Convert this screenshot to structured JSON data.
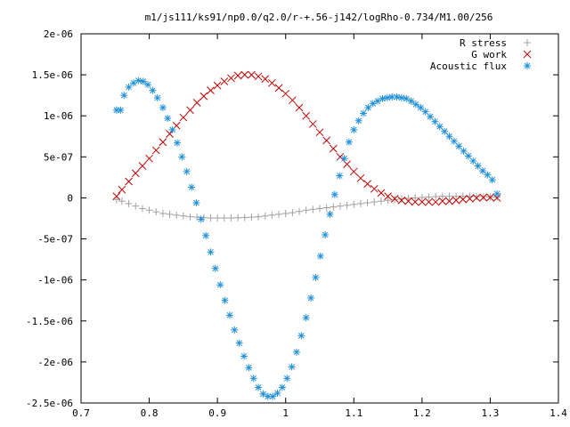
{
  "chart_data": {
    "type": "scatter",
    "title": "m1/js111/ks91/np0.0/q2.0/r-+.56-j142/logRho-0.734/M1.00/256",
    "xlabel": "",
    "ylabel": "",
    "xlim": [
      0.7,
      1.4
    ],
    "ylim": [
      -2.5e-06,
      2e-06
    ],
    "grid": false,
    "legend_position": "top-right",
    "x_ticks": [
      {
        "value": 0.7,
        "label": "0.7"
      },
      {
        "value": 0.8,
        "label": "0.8"
      },
      {
        "value": 0.9,
        "label": "0.9"
      },
      {
        "value": 1.0,
        "label": "1"
      },
      {
        "value": 1.1,
        "label": "1.1"
      },
      {
        "value": 1.2,
        "label": "1.2"
      },
      {
        "value": 1.3,
        "label": "1.3"
      },
      {
        "value": 1.4,
        "label": "1.4"
      }
    ],
    "y_ticks": [
      {
        "value": 2e-06,
        "label": "2e-06"
      },
      {
        "value": 1.5e-06,
        "label": "1.5e-06"
      },
      {
        "value": 1e-06,
        "label": "1e-06"
      },
      {
        "value": 5e-07,
        "label": "5e-07"
      },
      {
        "value": 0,
        "label": "0"
      },
      {
        "value": -5e-07,
        "label": "-5e-07"
      },
      {
        "value": -1e-06,
        "label": "-1e-06"
      },
      {
        "value": -1.5e-06,
        "label": "-1.5e-06"
      },
      {
        "value": -2e-06,
        "label": "-2e-06"
      },
      {
        "value": -2.5e-06,
        "label": "-2.5e-06"
      }
    ],
    "series": [
      {
        "name": "R stress",
        "marker": "plus",
        "color": "#a0a0a0",
        "points": [
          [
            0.752,
            -2e-08
          ],
          [
            0.76,
            -4e-08
          ],
          [
            0.77,
            -7e-08
          ],
          [
            0.78,
            -1e-07
          ],
          [
            0.79,
            -1.3e-07
          ],
          [
            0.8,
            -1.5e-07
          ],
          [
            0.81,
            -1.7e-07
          ],
          [
            0.82,
            -1.9e-07
          ],
          [
            0.83,
            -2e-07
          ],
          [
            0.84,
            -2.1e-07
          ],
          [
            0.85,
            -2.2e-07
          ],
          [
            0.86,
            -2.3e-07
          ],
          [
            0.87,
            -2.35e-07
          ],
          [
            0.88,
            -2.4e-07
          ],
          [
            0.89,
            -2.45e-07
          ],
          [
            0.9,
            -2.45e-07
          ],
          [
            0.91,
            -2.45e-07
          ],
          [
            0.92,
            -2.45e-07
          ],
          [
            0.93,
            -2.42e-07
          ],
          [
            0.94,
            -2.4e-07
          ],
          [
            0.95,
            -2.35e-07
          ],
          [
            0.96,
            -2.3e-07
          ],
          [
            0.97,
            -2.2e-07
          ],
          [
            0.98,
            -2.1e-07
          ],
          [
            0.99,
            -2e-07
          ],
          [
            1.0,
            -1.9e-07
          ],
          [
            1.01,
            -1.8e-07
          ],
          [
            1.02,
            -1.65e-07
          ],
          [
            1.03,
            -1.5e-07
          ],
          [
            1.04,
            -1.4e-07
          ],
          [
            1.05,
            -1.3e-07
          ],
          [
            1.06,
            -1.2e-07
          ],
          [
            1.07,
            -1.1e-07
          ],
          [
            1.08,
            -1e-07
          ],
          [
            1.09,
            -9e-08
          ],
          [
            1.1,
            -8e-08
          ],
          [
            1.11,
            -7e-08
          ],
          [
            1.12,
            -6e-08
          ],
          [
            1.13,
            -5e-08
          ],
          [
            1.14,
            -4e-08
          ],
          [
            1.15,
            -3e-08
          ],
          [
            1.16,
            -2e-08
          ],
          [
            1.17,
            -1e-08
          ],
          [
            1.18,
            -5e-09
          ],
          [
            1.19,
            0
          ],
          [
            1.2,
            5e-09
          ],
          [
            1.21,
            1e-08
          ],
          [
            1.22,
            1.5e-08
          ],
          [
            1.23,
            2e-08
          ],
          [
            1.24,
            2e-08
          ],
          [
            1.25,
            2e-08
          ],
          [
            1.26,
            2e-08
          ],
          [
            1.27,
            2e-08
          ],
          [
            1.28,
            1.5e-08
          ],
          [
            1.29,
            1.5e-08
          ],
          [
            1.3,
            1e-08
          ],
          [
            1.31,
            1e-08
          ]
        ]
      },
      {
        "name": "G work",
        "marker": "cross",
        "color": "#c00000",
        "points": [
          [
            0.752,
            2e-08
          ],
          [
            0.76,
            1e-07
          ],
          [
            0.77,
            2e-07
          ],
          [
            0.78,
            3e-07
          ],
          [
            0.79,
            3.9e-07
          ],
          [
            0.8,
            4.8e-07
          ],
          [
            0.81,
            5.8e-07
          ],
          [
            0.82,
            6.8e-07
          ],
          [
            0.83,
            7.8e-07
          ],
          [
            0.84,
            8.8e-07
          ],
          [
            0.85,
            9.8e-07
          ],
          [
            0.86,
            1.07e-06
          ],
          [
            0.87,
            1.16e-06
          ],
          [
            0.88,
            1.24e-06
          ],
          [
            0.89,
            1.31e-06
          ],
          [
            0.9,
            1.37e-06
          ],
          [
            0.91,
            1.42e-06
          ],
          [
            0.92,
            1.46e-06
          ],
          [
            0.93,
            1.49e-06
          ],
          [
            0.94,
            1.5e-06
          ],
          [
            0.95,
            1.5e-06
          ],
          [
            0.96,
            1.48e-06
          ],
          [
            0.97,
            1.45e-06
          ],
          [
            0.98,
            1.4e-06
          ],
          [
            0.99,
            1.34e-06
          ],
          [
            1.0,
            1.27e-06
          ],
          [
            1.01,
            1.19e-06
          ],
          [
            1.02,
            1.1e-06
          ],
          [
            1.03,
            1e-06
          ],
          [
            1.04,
            9e-07
          ],
          [
            1.05,
            8e-07
          ],
          [
            1.06,
            7e-07
          ],
          [
            1.07,
            6e-07
          ],
          [
            1.08,
            5e-07
          ],
          [
            1.09,
            4.1e-07
          ],
          [
            1.1,
            3.2e-07
          ],
          [
            1.11,
            2.4e-07
          ],
          [
            1.12,
            1.7e-07
          ],
          [
            1.13,
            1.1e-07
          ],
          [
            1.14,
            6e-08
          ],
          [
            1.15,
            2e-08
          ],
          [
            1.16,
            -1e-08
          ],
          [
            1.17,
            -3e-08
          ],
          [
            1.18,
            -4e-08
          ],
          [
            1.19,
            -5e-08
          ],
          [
            1.2,
            -5e-08
          ],
          [
            1.21,
            -5e-08
          ],
          [
            1.22,
            -5e-08
          ],
          [
            1.23,
            -4e-08
          ],
          [
            1.24,
            -4e-08
          ],
          [
            1.25,
            -3e-08
          ],
          [
            1.26,
            -2e-08
          ],
          [
            1.27,
            -1e-08
          ],
          [
            1.28,
            0
          ],
          [
            1.29,
            5e-09
          ],
          [
            1.3,
            5e-09
          ],
          [
            1.31,
            0
          ]
        ]
      },
      {
        "name": "Acoustic flux",
        "marker": "star",
        "color": "#1f8fd8",
        "points": [
          [
            0.752,
            1.07e-06
          ],
          [
            0.758,
            1.07e-06
          ],
          [
            0.763,
            1.25e-06
          ],
          [
            0.77,
            1.35e-06
          ],
          [
            0.777,
            1.4e-06
          ],
          [
            0.784,
            1.43e-06
          ],
          [
            0.791,
            1.42e-06
          ],
          [
            0.798,
            1.38e-06
          ],
          [
            0.805,
            1.31e-06
          ],
          [
            0.812,
            1.22e-06
          ],
          [
            0.82,
            1.1e-06
          ],
          [
            0.827,
            9.7e-07
          ],
          [
            0.834,
            8.3e-07
          ],
          [
            0.841,
            6.7e-07
          ],
          [
            0.848,
            5e-07
          ],
          [
            0.855,
            3.2e-07
          ],
          [
            0.862,
            1.3e-07
          ],
          [
            0.869,
            -6e-08
          ],
          [
            0.876,
            -2.6e-07
          ],
          [
            0.883,
            -4.6e-07
          ],
          [
            0.89,
            -6.6e-07
          ],
          [
            0.897,
            -8.6e-07
          ],
          [
            0.904,
            -1.06e-06
          ],
          [
            0.911,
            -1.25e-06
          ],
          [
            0.918,
            -1.43e-06
          ],
          [
            0.925,
            -1.61e-06
          ],
          [
            0.932,
            -1.77e-06
          ],
          [
            0.939,
            -1.93e-06
          ],
          [
            0.946,
            -2.07e-06
          ],
          [
            0.953,
            -2.2e-06
          ],
          [
            0.96,
            -2.31e-06
          ],
          [
            0.967,
            -2.39e-06
          ],
          [
            0.974,
            -2.42e-06
          ],
          [
            0.981,
            -2.42e-06
          ],
          [
            0.988,
            -2.38e-06
          ],
          [
            0.995,
            -2.31e-06
          ],
          [
            1.002,
            -2.2e-06
          ],
          [
            1.009,
            -2.06e-06
          ],
          [
            1.016,
            -1.88e-06
          ],
          [
            1.023,
            -1.68e-06
          ],
          [
            1.03,
            -1.46e-06
          ],
          [
            1.037,
            -1.22e-06
          ],
          [
            1.044,
            -9.7e-07
          ],
          [
            1.051,
            -7.1e-07
          ],
          [
            1.058,
            -4.5e-07
          ],
          [
            1.065,
            -2e-07
          ],
          [
            1.072,
            4e-08
          ],
          [
            1.079,
            2.7e-07
          ],
          [
            1.086,
            4.8e-07
          ],
          [
            1.093,
            6.8e-07
          ],
          [
            1.1,
            8.3e-07
          ],
          [
            1.107,
            9.4e-07
          ],
          [
            1.114,
            1.03e-06
          ],
          [
            1.121,
            1.1e-06
          ],
          [
            1.128,
            1.15e-06
          ],
          [
            1.135,
            1.18e-06
          ],
          [
            1.142,
            1.21e-06
          ],
          [
            1.149,
            1.22e-06
          ],
          [
            1.156,
            1.23e-06
          ],
          [
            1.163,
            1.23e-06
          ],
          [
            1.17,
            1.22e-06
          ],
          [
            1.177,
            1.21e-06
          ],
          [
            1.184,
            1.18e-06
          ],
          [
            1.191,
            1.14e-06
          ],
          [
            1.198,
            1.1e-06
          ],
          [
            1.205,
            1.05e-06
          ],
          [
            1.212,
            9.9e-07
          ],
          [
            1.219,
            9.3e-07
          ],
          [
            1.226,
            8.7e-07
          ],
          [
            1.233,
            8.1e-07
          ],
          [
            1.24,
            7.5e-07
          ],
          [
            1.247,
            6.9e-07
          ],
          [
            1.254,
            6.3e-07
          ],
          [
            1.261,
            5.7e-07
          ],
          [
            1.268,
            5.1e-07
          ],
          [
            1.275,
            4.5e-07
          ],
          [
            1.282,
            3.9e-07
          ],
          [
            1.289,
            3.3e-07
          ],
          [
            1.296,
            2.8e-07
          ],
          [
            1.303,
            2.2e-07
          ],
          [
            1.31,
            5e-08
          ]
        ]
      }
    ]
  }
}
